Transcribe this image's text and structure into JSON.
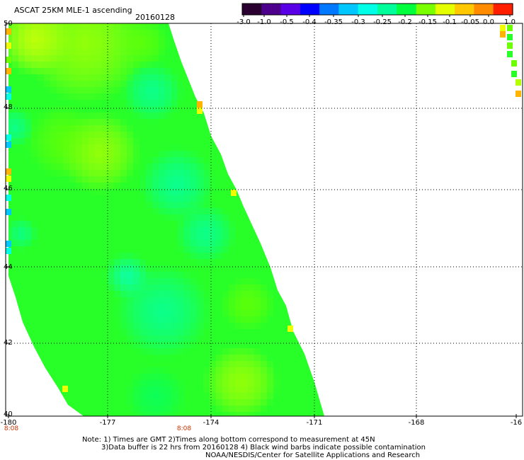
{
  "title": "ASCAT 25KM MLE-1 ascending",
  "date": "20160128",
  "colorbar": {
    "labels": [
      "-3.0",
      "-1.0",
      "-0.5",
      "-0.4",
      "-0.35",
      "-0.3",
      "-0.25",
      "-0.2",
      "-0.15",
      "-0.1",
      "-0.05",
      "0.0",
      "1.0"
    ],
    "colors": [
      "#2a0030",
      "#4c008c",
      "#5a00e6",
      "#0000ff",
      "#0078ff",
      "#00c8ff",
      "#00ffe6",
      "#00ff9a",
      "#00ff3c",
      "#7aff00",
      "#e6ff00",
      "#ffc800",
      "#ff8c00",
      "#ff1e00"
    ]
  },
  "axes": {
    "lat_labels": [
      "50",
      "48",
      "46",
      "44",
      "42",
      "40"
    ],
    "lon_labels": [
      "-180",
      "-177",
      "-174",
      "-171",
      "-168",
      "-16"
    ],
    "time_labels": [
      "8:08",
      "8:08"
    ]
  },
  "notes": {
    "line1": "Note: 1) Times are GMT 2)Times along bottom correspond to measurement at 45N",
    "line2": "3)Data buffer is 22 hrs from 20160128 4) Black wind barbs indicate possible contamination",
    "line3": "NOAA/NESDIS/Center for Satellite Applications and Research"
  },
  "palette": {
    "yellow": "#f0ff00",
    "yellow_green": "#b4ff00",
    "light_green": "#6eff00",
    "green": "#28ff28",
    "green_cyan": "#00ff6e",
    "aqua_green": "#00ffb4",
    "cyan": "#00ffe6",
    "light_blue": "#00c8ff",
    "orange": "#ffb400",
    "grid": "#000000"
  }
}
